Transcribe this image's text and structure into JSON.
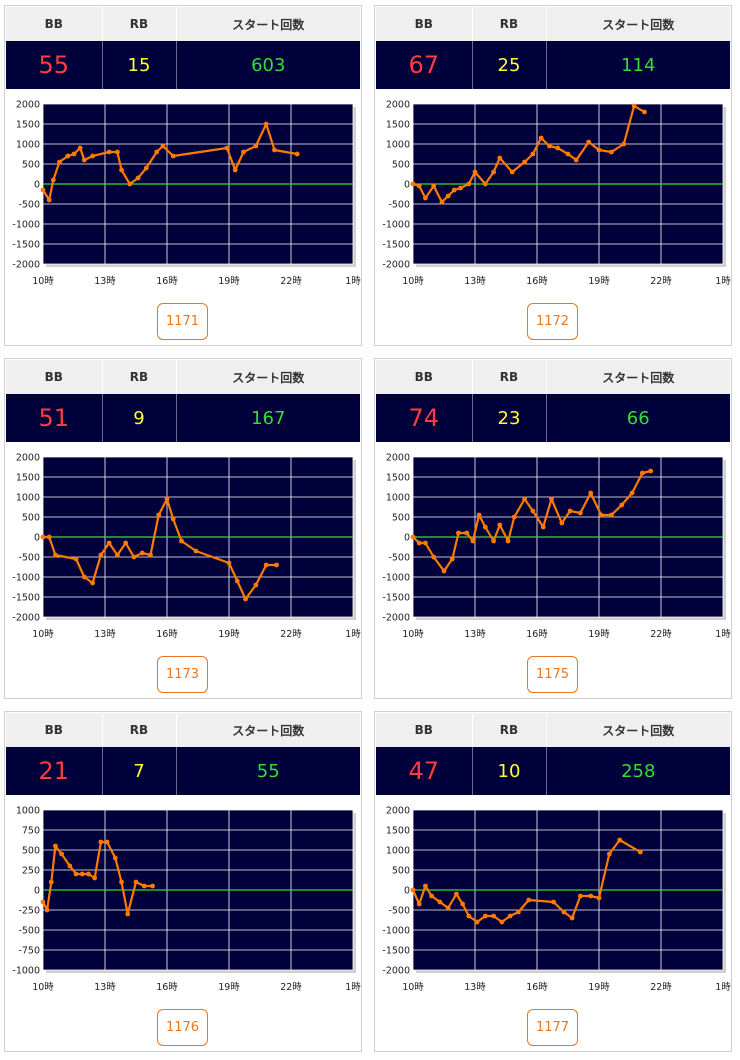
{
  "colors": {
    "bb": "#ff3c3c",
    "rb": "#ffff33",
    "start": "#33dd33",
    "plot_bg": "#00003a",
    "line": "#ff7a00",
    "zero_line": "#33dd33",
    "button": "#e87722"
  },
  "headers": {
    "bb": "BB",
    "rb": "RB",
    "start": "スタート回数"
  },
  "x_ticks": [
    "10時",
    "13時",
    "16時",
    "19時",
    "22時",
    "1時"
  ],
  "machines": [
    {
      "id": "1171",
      "bb": "55",
      "rb": "15",
      "start": "603",
      "chart_data": {
        "type": "line",
        "xlim": [
          10,
          25
        ],
        "ylim": [
          -2000,
          2000
        ],
        "yticks": [
          2000,
          1500,
          1000,
          500,
          0,
          -500,
          -1000,
          -1500,
          -2000
        ],
        "x": [
          10.0,
          10.3,
          10.5,
          10.8,
          11.2,
          11.5,
          11.8,
          12.0,
          12.4,
          13.2,
          13.6,
          13.8,
          14.2,
          14.6,
          15.0,
          15.5,
          15.8,
          16.3,
          18.9,
          19.3,
          19.7,
          20.3,
          20.8,
          21.2,
          22.3
        ],
        "y": [
          -150,
          -400,
          100,
          550,
          700,
          750,
          900,
          600,
          700,
          800,
          800,
          350,
          0,
          150,
          400,
          800,
          950,
          700,
          900,
          350,
          800,
          950,
          1500,
          850,
          750
        ]
      }
    },
    {
      "id": "1172",
      "bb": "67",
      "rb": "25",
      "start": "114",
      "chart_data": {
        "type": "line",
        "xlim": [
          10,
          25
        ],
        "ylim": [
          -2000,
          2000
        ],
        "yticks": [
          2000,
          1500,
          1000,
          500,
          0,
          -500,
          -1000,
          -1500,
          -2000
        ],
        "x": [
          10.0,
          10.3,
          10.6,
          11.0,
          11.4,
          11.7,
          12.0,
          12.3,
          12.7,
          13.0,
          13.5,
          13.9,
          14.2,
          14.8,
          15.4,
          15.8,
          16.2,
          16.6,
          17.0,
          17.5,
          17.9,
          18.5,
          19.0,
          19.6,
          20.2,
          20.7,
          21.2
        ],
        "y": [
          0,
          -50,
          -350,
          -50,
          -450,
          -300,
          -150,
          -100,
          0,
          300,
          0,
          300,
          650,
          300,
          550,
          750,
          1150,
          950,
          900,
          750,
          600,
          1050,
          850,
          800,
          1000,
          1950,
          1800
        ]
      }
    },
    {
      "id": "1173",
      "bb": "51",
      "rb": "9",
      "start": "167",
      "chart_data": {
        "type": "line",
        "xlim": [
          10,
          25
        ],
        "ylim": [
          -2000,
          2000
        ],
        "yticks": [
          2000,
          1500,
          1000,
          500,
          0,
          -500,
          -1000,
          -1500,
          -2000
        ],
        "x": [
          10.0,
          10.3,
          10.6,
          11.6,
          12.0,
          12.4,
          12.8,
          13.2,
          13.6,
          14.0,
          14.4,
          14.8,
          15.2,
          15.6,
          16.0,
          16.3,
          16.7,
          17.4,
          19.0,
          19.4,
          19.8,
          20.3,
          20.8,
          21.3
        ],
        "y": [
          0,
          0,
          -450,
          -550,
          -1000,
          -1150,
          -450,
          -150,
          -450,
          -150,
          -500,
          -400,
          -450,
          550,
          950,
          450,
          -100,
          -350,
          -650,
          -1100,
          -1550,
          -1200,
          -700,
          -700
        ]
      }
    },
    {
      "id": "1175",
      "bb": "74",
      "rb": "23",
      "start": "66",
      "chart_data": {
        "type": "line",
        "xlim": [
          10,
          25
        ],
        "ylim": [
          -2000,
          2000
        ],
        "yticks": [
          2000,
          1500,
          1000,
          500,
          0,
          -500,
          -1000,
          -1500,
          -2000
        ],
        "x": [
          10.0,
          10.3,
          10.6,
          11.0,
          11.5,
          11.9,
          12.2,
          12.6,
          12.9,
          13.2,
          13.5,
          13.9,
          14.2,
          14.6,
          14.9,
          15.4,
          15.8,
          16.3,
          16.7,
          17.2,
          17.6,
          18.1,
          18.6,
          19.1,
          19.6,
          20.1,
          20.6,
          21.1,
          21.5
        ],
        "y": [
          0,
          -150,
          -150,
          -500,
          -850,
          -550,
          100,
          100,
          -100,
          550,
          250,
          -100,
          300,
          -100,
          500,
          950,
          650,
          250,
          950,
          350,
          650,
          600,
          1100,
          550,
          550,
          800,
          1100,
          1600,
          1650
        ]
      }
    },
    {
      "id": "1176",
      "bb": "21",
      "rb": "7",
      "start": "55",
      "chart_data": {
        "type": "line",
        "xlim": [
          10,
          25
        ],
        "ylim": [
          -1000,
          1000
        ],
        "yticks": [
          1000,
          750,
          500,
          250,
          0,
          -250,
          -500,
          -750,
          -1000
        ],
        "x": [
          10.0,
          10.2,
          10.4,
          10.6,
          10.9,
          11.3,
          11.6,
          11.9,
          12.2,
          12.5,
          12.8,
          13.1,
          13.5,
          13.8,
          14.1,
          14.5,
          14.9,
          15.3
        ],
        "y": [
          -150,
          -250,
          100,
          550,
          450,
          300,
          200,
          200,
          200,
          150,
          600,
          600,
          400,
          100,
          -300,
          100,
          50,
          50
        ]
      }
    },
    {
      "id": "1177",
      "bb": "47",
      "rb": "10",
      "start": "258",
      "chart_data": {
        "type": "line",
        "xlim": [
          10,
          25
        ],
        "ylim": [
          -2000,
          2000
        ],
        "yticks": [
          2000,
          1500,
          1000,
          500,
          0,
          -500,
          -1000,
          -1500,
          -2000
        ],
        "x": [
          10.0,
          10.3,
          10.6,
          10.9,
          11.3,
          11.7,
          12.1,
          12.4,
          12.7,
          13.1,
          13.5,
          13.9,
          14.3,
          14.7,
          15.1,
          15.6,
          16.8,
          17.3,
          17.7,
          18.1,
          18.6,
          19.0,
          19.5,
          20.0,
          21.0
        ],
        "y": [
          0,
          -350,
          100,
          -150,
          -300,
          -450,
          -100,
          -350,
          -650,
          -800,
          -650,
          -650,
          -800,
          -650,
          -550,
          -250,
          -300,
          -550,
          -700,
          -150,
          -150,
          -200,
          900,
          1250,
          950
        ]
      }
    }
  ]
}
